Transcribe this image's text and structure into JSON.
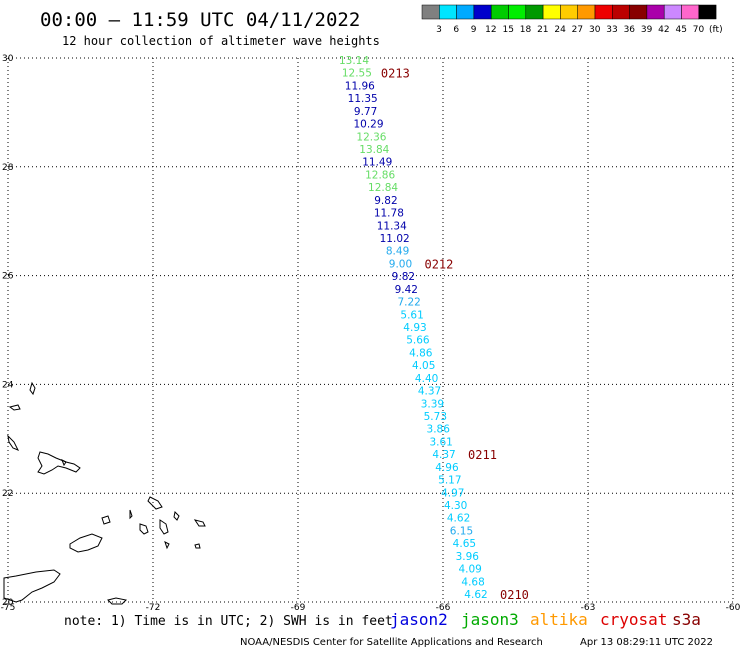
{
  "header": {
    "title": "00:00 – 11:59 UTC 04/11/2022",
    "subtitle": "12 hour collection of altimeter wave heights"
  },
  "colorbar": {
    "colors": [
      "#808080",
      "#00e5ff",
      "#00aaff",
      "#0000cc",
      "#00cc00",
      "#00ee00",
      "#009900",
      "#ffff00",
      "#ffcc00",
      "#ff9900",
      "#ee0000",
      "#bb0000",
      "#880000",
      "#aa00aa",
      "#cc88ff",
      "#ff66cc",
      "#000000"
    ],
    "labels": [
      "3",
      "6",
      "9",
      "12",
      "15",
      "18",
      "21",
      "24",
      "27",
      "30",
      "33",
      "36",
      "39",
      "42",
      "45",
      "70",
      "(ft)"
    ]
  },
  "map": {
    "lon_range": [
      -75,
      -60
    ],
    "lat_range": [
      20,
      30
    ],
    "lon_ticks": [
      "-75",
      "-72",
      "-69",
      "-66",
      "-63",
      "-60"
    ],
    "lat_ticks": [
      "30",
      "28",
      "26",
      "24",
      "22",
      "20"
    ],
    "lat_tick_values": [
      30,
      28,
      26,
      24,
      22,
      20
    ],
    "lon_tick_values": [
      -75,
      -72,
      -69,
      -66,
      -63,
      -60
    ]
  },
  "swh_points": [
    {
      "v": "13.14",
      "c": "#66dd66"
    },
    {
      "v": "12.55",
      "c": "#66dd66"
    },
    {
      "v": "11.96",
      "c": "#0000aa"
    },
    {
      "v": "11.35",
      "c": "#0000aa"
    },
    {
      "v": "9.77",
      "c": "#0000aa"
    },
    {
      "v": "10.29",
      "c": "#0000aa"
    },
    {
      "v": "12.36",
      "c": "#66dd66"
    },
    {
      "v": "13.84",
      "c": "#66dd66"
    },
    {
      "v": "11.49",
      "c": "#0000aa"
    },
    {
      "v": "12.86",
      "c": "#66dd66"
    },
    {
      "v": "12.84",
      "c": "#66dd66"
    },
    {
      "v": "9.82",
      "c": "#0000aa"
    },
    {
      "v": "11.78",
      "c": "#0000aa"
    },
    {
      "v": "11.34",
      "c": "#0000aa"
    },
    {
      "v": "11.02",
      "c": "#0000aa"
    },
    {
      "v": "8.49",
      "c": "#22aaee"
    },
    {
      "v": "9.00",
      "c": "#22aaee"
    },
    {
      "v": "9.82",
      "c": "#0000aa"
    },
    {
      "v": "9.42",
      "c": "#0000aa"
    },
    {
      "v": "7.22",
      "c": "#22aaee"
    },
    {
      "v": "5.61",
      "c": "#00ccff"
    },
    {
      "v": "4.93",
      "c": "#00ccff"
    },
    {
      "v": "5.66",
      "c": "#00ccff"
    },
    {
      "v": "4.86",
      "c": "#00ccff"
    },
    {
      "v": "4.05",
      "c": "#00ccff"
    },
    {
      "v": "4.40",
      "c": "#00ccff"
    },
    {
      "v": "4.37",
      "c": "#00ccff"
    },
    {
      "v": "3.39",
      "c": "#00ccff"
    },
    {
      "v": "5.73",
      "c": "#00ccff"
    },
    {
      "v": "3.86",
      "c": "#00ccff"
    },
    {
      "v": "3.61",
      "c": "#00ccff"
    },
    {
      "v": "4.37",
      "c": "#00ccff"
    },
    {
      "v": "4.96",
      "c": "#00ccff"
    },
    {
      "v": "5.17",
      "c": "#00ccff"
    },
    {
      "v": "4.97",
      "c": "#00ccff"
    },
    {
      "v": "4.30",
      "c": "#00ccff"
    },
    {
      "v": "4.62",
      "c": "#00ccff"
    },
    {
      "v": "6.15",
      "c": "#22aaee"
    },
    {
      "v": "4.65",
      "c": "#00ccff"
    },
    {
      "v": "3.96",
      "c": "#00ccff"
    },
    {
      "v": "4.09",
      "c": "#00ccff"
    },
    {
      "v": "4.68",
      "c": "#00ccff"
    },
    {
      "v": "4.62",
      "c": "#00ccff"
    }
  ],
  "time_labels": [
    {
      "text": "0213",
      "color": "#880000",
      "index": 1
    },
    {
      "text": "0212",
      "color": "#880000",
      "index": 16
    },
    {
      "text": "0211",
      "color": "#880000",
      "index": 31
    },
    {
      "text": "0210",
      "color": "#880000",
      "index": 42
    }
  ],
  "footer": {
    "note": "note: 1) Time is in UTC; 2) SWH is in feet",
    "satellites": [
      {
        "name": "jason2",
        "color": "#0000dd"
      },
      {
        "name": "jason3",
        "color": "#00aa00"
      },
      {
        "name": "altika",
        "color": "#ff9900"
      },
      {
        "name": "cryosat",
        "color": "#dd0000"
      },
      {
        "name": "s3a",
        "color": "#880000"
      }
    ],
    "credit": "NOAA/NESDIS Center for Satellite Applications and Research",
    "timestamp": "Apr 13 08:29:11 UTC 2022"
  }
}
